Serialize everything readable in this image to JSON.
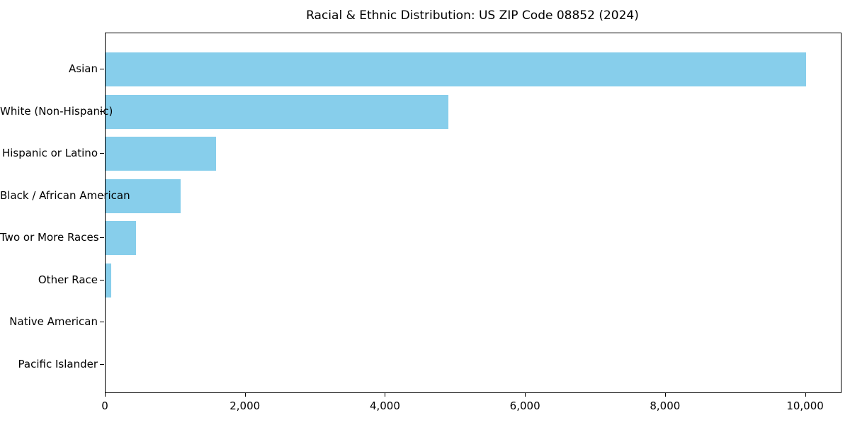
{
  "chart_data": {
    "type": "bar",
    "orientation": "horizontal",
    "title": "Racial & Ethnic Distribution: US ZIP Code 08852 (2024)",
    "categories": [
      "Asian",
      "White (Non-Hispanic)",
      "Hispanic or Latino",
      "Black / African American",
      "Two or More Races",
      "Other Race",
      "Native American",
      "Pacific Islander"
    ],
    "values": [
      10000,
      4900,
      1580,
      1070,
      430,
      85,
      0,
      0
    ],
    "bar_color": "#87CEEB",
    "xlabel": "",
    "ylabel": "",
    "xlim": [
      0,
      10500
    ],
    "x_tick_values": [
      0,
      2000,
      4000,
      6000,
      8000,
      10000
    ],
    "x_tick_labels": [
      "0",
      "2,000",
      "4,000",
      "6,000",
      "8,000",
      "10,000"
    ],
    "grid": false,
    "legend": null,
    "background_color": "#ffffff",
    "text_color": "#000000"
  }
}
